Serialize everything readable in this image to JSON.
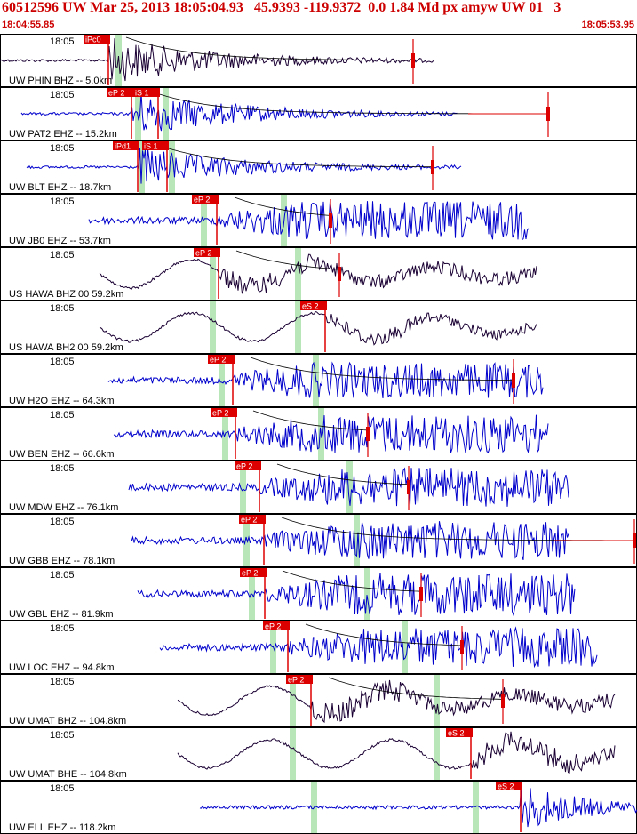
{
  "header": {
    "title": "60512596 UW Mar 25, 2013 18:05:04.93   45.9393 -119.9372  0.0 1.84 Md px amyw UW 01   3",
    "start_time": "18:04:55.85",
    "end_time": "18:05:53.95"
  },
  "colors": {
    "header_text": "#cc0000",
    "pick": "#dd0000",
    "trace_blue": "#0000cc",
    "trace_dark": "#1a0033",
    "window": "#b8e6b8",
    "panel_border": "#000000"
  },
  "time_label": "18:05",
  "panels": [
    {
      "station": "UW PHIN BHZ -- 5.0km",
      "color": "dark",
      "picks": [
        "iPc0"
      ]
    },
    {
      "station": "UW PAT2 EHZ -- 15.2km",
      "color": "blue",
      "picks": [
        "eP 2",
        "iS 1"
      ]
    },
    {
      "station": "UW BLT EHZ -- 18.7km",
      "color": "blue",
      "picks": [
        "iPd1",
        "iS 1"
      ]
    },
    {
      "station": "UW JB0 EHZ -- 53.7km",
      "color": "blue",
      "picks": [
        "eP 2"
      ]
    },
    {
      "station": "US HAWA BHZ 00 59.2km",
      "color": "dark",
      "picks": [
        "eP 2"
      ]
    },
    {
      "station": "US HAWA BH2 00 59.2km",
      "color": "dark",
      "picks": [
        "eS 2"
      ]
    },
    {
      "station": "UW H2O EHZ -- 64.3km",
      "color": "blue",
      "picks": [
        "eP 2"
      ]
    },
    {
      "station": "UW BEN EHZ -- 66.6km",
      "color": "blue",
      "picks": [
        "eP 2"
      ]
    },
    {
      "station": "UW MDW EHZ -- 76.1km",
      "color": "blue",
      "picks": [
        "eP 2"
      ]
    },
    {
      "station": "UW GBB EHZ -- 78.1km",
      "color": "blue",
      "picks": [
        "eP 2"
      ]
    },
    {
      "station": "UW GBL EHZ -- 81.9km",
      "color": "blue",
      "picks": [
        "eP 2"
      ]
    },
    {
      "station": "UW LOC EHZ -- 94.8km",
      "color": "blue",
      "picks": [
        "eP 2"
      ]
    },
    {
      "station": "UW UMAT BHZ -- 104.8km",
      "color": "dark",
      "picks": [
        "eP 2"
      ]
    },
    {
      "station": "UW UMAT BHE -- 104.8km",
      "color": "dark",
      "picks": [
        "eS 2"
      ]
    },
    {
      "station": "UW ELL EHZ -- 118.2km",
      "color": "blue",
      "picks": [
        "eS 2"
      ]
    }
  ]
}
